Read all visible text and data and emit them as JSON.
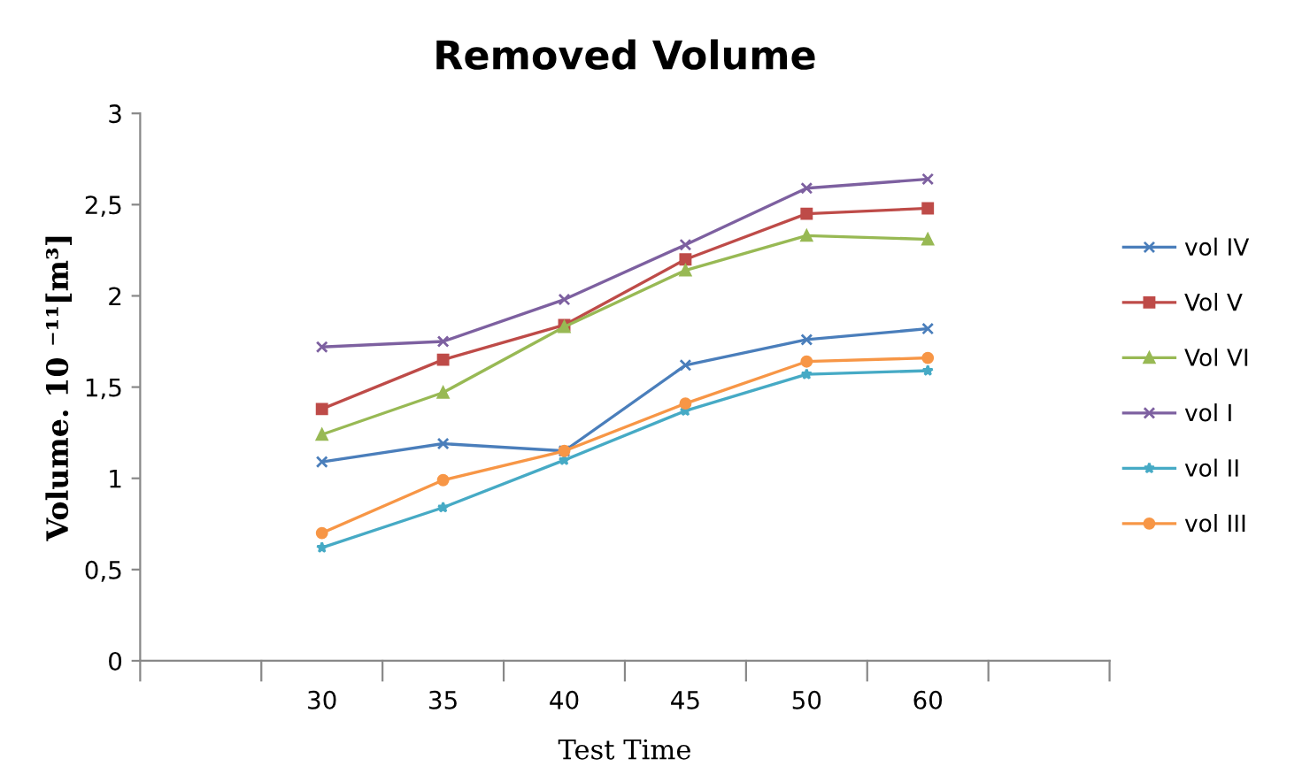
{
  "chart_data": {
    "type": "line",
    "title": "Removed Volume",
    "xlabel": "Test Time",
    "ylabel": "Volume. 10 ⁻¹¹[m³]",
    "categories": [
      null,
      "30",
      "35",
      "40",
      "45",
      "50",
      "60",
      null
    ],
    "series": [
      {
        "name": "vol IV",
        "color": "#4a7ebb",
        "marker": "cross",
        "values": [
          null,
          1.09,
          1.19,
          1.15,
          1.62,
          1.76,
          1.82,
          null
        ]
      },
      {
        "name": "Vol V",
        "color": "#be4b48",
        "marker": "square",
        "values": [
          null,
          1.38,
          1.65,
          1.84,
          2.2,
          2.45,
          2.48,
          null
        ]
      },
      {
        "name": "Vol VI",
        "color": "#98b954",
        "marker": "triangle",
        "values": [
          null,
          1.24,
          1.47,
          1.83,
          2.14,
          2.33,
          2.31,
          null
        ]
      },
      {
        "name": "vol I",
        "color": "#7d60a0",
        "marker": "cross",
        "values": [
          null,
          1.72,
          1.75,
          1.98,
          2.28,
          2.59,
          2.64,
          null
        ]
      },
      {
        "name": "vol II",
        "color": "#46aac5",
        "marker": "star",
        "values": [
          null,
          0.62,
          0.84,
          1.1,
          1.37,
          1.57,
          1.59,
          null
        ]
      },
      {
        "name": "vol III",
        "color": "#f79646",
        "marker": "circle",
        "values": [
          null,
          0.7,
          0.99,
          1.15,
          1.41,
          1.64,
          1.66,
          null
        ]
      }
    ],
    "ylim": [
      0,
      3
    ],
    "yticks": [
      0,
      {
        "value": 0.5,
        "label": "0,5"
      },
      1,
      {
        "value": 1.5,
        "label": "1,5"
      },
      2,
      {
        "value": 2.5,
        "label": "2,5"
      },
      3
    ],
    "grid": false,
    "legend": "right",
    "line_style": "solid"
  }
}
